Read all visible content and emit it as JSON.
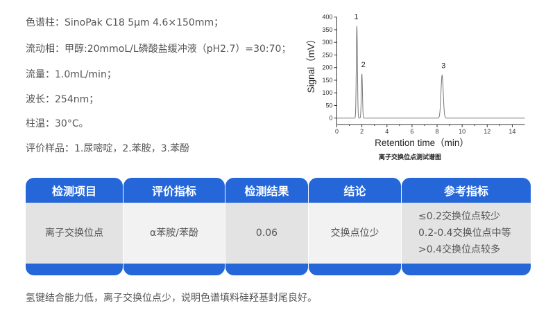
{
  "conditions": [
    "色谱柱：SinoPak C18 5μm 4.6×150mm；",
    "流动相：甲醇:20mmoL/L磷酸盐缓冲液（pH2.7）=30:70；",
    "流量：1.0mL/min；",
    "波长：254nm；",
    "柱温：30°C。",
    "评价样品：1.尿嘧啶，2.苯胺，3.苯酚"
  ],
  "chart_data": {
    "type": "line",
    "title": "离子交换位点测试谱图",
    "xlabel": "Retention time（min）",
    "ylabel": "Signal（mV）",
    "xlim": [
      0,
      15
    ],
    "ylim": [
      -25,
      400
    ],
    "xticks": [
      0,
      2,
      4,
      6,
      8,
      10,
      12,
      14
    ],
    "yticks": [
      0,
      50,
      100,
      150,
      200,
      250,
      300,
      350,
      400
    ],
    "grid": false,
    "peaks": [
      {
        "label": "1",
        "x": 1.6,
        "y": 365
      },
      {
        "label": "2",
        "x": 2.0,
        "y": 175
      },
      {
        "label": "3",
        "x": 8.4,
        "y": 170
      }
    ],
    "line_color": "#777777"
  },
  "table": {
    "headers": [
      "检测项目",
      "评价指标",
      "检测结果",
      "结论",
      "参考指标"
    ],
    "row": [
      "离子交换位点",
      "α苯胺/苯酚",
      "0.06",
      "交换点位少",
      [
        "≤0.2交换位点较少",
        "0.2-0.4交换位点中等",
        ">0.4交换位点较多"
      ]
    ],
    "colors": {
      "header": "#2566d8",
      "cell_dark": "#e3e3e3",
      "cell_light": "#f2f2f2"
    }
  },
  "footer": "氢键结合能力低，离子交换位点少，说明色谱填料硅羟基封尾良好。"
}
